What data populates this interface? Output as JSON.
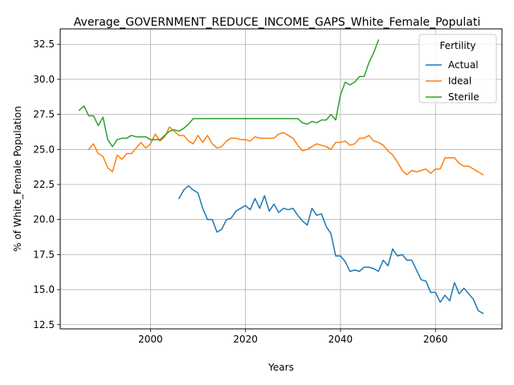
{
  "chart_data": {
    "type": "line",
    "title": "Average_GOVERNMENT_REDUCE_INCOME_GAPS_White_Female_Populati",
    "xlabel": "Years",
    "ylabel": "% of White_Female Population",
    "xlim": [
      1981,
      2074
    ],
    "ylim": [
      12.2,
      33.6
    ],
    "xticks": [
      2000,
      2020,
      2040,
      2060
    ],
    "yticks": [
      12.5,
      15.0,
      17.5,
      20.0,
      22.5,
      25.0,
      27.5,
      30.0,
      32.5
    ],
    "grid": true,
    "legend": {
      "title": "Fertility",
      "position": "top-right"
    },
    "series": [
      {
        "name": "Actual",
        "color": "#1f77b4",
        "x": [
          2006,
          2007,
          2008,
          2009,
          2010,
          2011,
          2012,
          2013,
          2014,
          2015,
          2016,
          2017,
          2018,
          2019,
          2020,
          2021,
          2022,
          2023,
          2024,
          2025,
          2026,
          2027,
          2028,
          2029,
          2030,
          2031,
          2032,
          2033,
          2034,
          2035,
          2036,
          2037,
          2038,
          2039,
          2040,
          2041,
          2042,
          2043,
          2044,
          2045,
          2046,
          2047,
          2048,
          2049,
          2050,
          2051,
          2052,
          2053,
          2054,
          2055,
          2056,
          2057,
          2058,
          2059,
          2060,
          2061,
          2062,
          2063,
          2064,
          2065,
          2066,
          2067,
          2068,
          2069,
          2070
        ],
        "values": [
          21.5,
          22.1,
          22.4,
          22.1,
          21.9,
          20.8,
          20.0,
          20.0,
          19.1,
          19.3,
          20.0,
          20.1,
          20.6,
          20.8,
          21.0,
          20.7,
          21.5,
          20.8,
          21.7,
          20.6,
          21.1,
          20.5,
          20.8,
          20.7,
          20.8,
          20.3,
          19.9,
          19.6,
          20.8,
          20.3,
          20.4,
          19.5,
          19.0,
          17.4,
          17.4,
          17.0,
          16.3,
          16.4,
          16.3,
          16.6,
          16.6,
          16.5,
          16.3,
          17.1,
          16.7,
          17.9,
          17.4,
          17.5,
          17.1,
          17.1,
          16.4,
          15.7,
          15.6,
          14.8,
          14.8,
          14.1,
          14.6,
          14.2,
          15.5,
          14.7,
          15.1,
          14.7,
          14.3,
          13.5,
          13.3
        ]
      },
      {
        "name": "Ideal",
        "color": "#ff7f0e",
        "x": [
          1987,
          1988,
          1989,
          1990,
          1991,
          1992,
          1993,
          1994,
          1995,
          1996,
          1997,
          1998,
          1999,
          2000,
          2001,
          2002,
          2003,
          2004,
          2005,
          2006,
          2007,
          2008,
          2009,
          2010,
          2011,
          2012,
          2013,
          2014,
          2015,
          2016,
          2017,
          2018,
          2019,
          2020,
          2021,
          2022,
          2023,
          2024,
          2025,
          2026,
          2027,
          2028,
          2029,
          2030,
          2031,
          2032,
          2033,
          2034,
          2035,
          2036,
          2037,
          2038,
          2039,
          2040,
          2041,
          2042,
          2043,
          2044,
          2045,
          2046,
          2047,
          2048,
          2049,
          2050,
          2051,
          2052,
          2053,
          2054,
          2055,
          2056,
          2057,
          2058,
          2059,
          2060,
          2061,
          2062,
          2063,
          2064,
          2065,
          2066,
          2067,
          2068,
          2069,
          2070
        ],
        "values": [
          25.0,
          25.4,
          24.7,
          24.5,
          23.7,
          23.4,
          24.6,
          24.3,
          24.7,
          24.7,
          25.1,
          25.5,
          25.1,
          25.4,
          26.1,
          25.6,
          25.9,
          26.6,
          26.3,
          26.0,
          26.0,
          25.6,
          25.4,
          26.0,
          25.5,
          26.0,
          25.4,
          25.1,
          25.2,
          25.6,
          25.8,
          25.8,
          25.7,
          25.7,
          25.6,
          25.9,
          25.8,
          25.8,
          25.8,
          25.8,
          26.1,
          26.2,
          26.0,
          25.8,
          25.3,
          24.9,
          25.0,
          25.2,
          25.4,
          25.3,
          25.2,
          25.0,
          25.5,
          25.5,
          25.6,
          25.3,
          25.4,
          25.8,
          25.8,
          26.0,
          25.6,
          25.5,
          25.3,
          24.9,
          24.6,
          24.1,
          23.5,
          23.2,
          23.5,
          23.4,
          23.5,
          23.6,
          23.3,
          23.6,
          23.6,
          24.4,
          24.4,
          24.4,
          24.0,
          23.8,
          23.8,
          23.6,
          23.4,
          23.2
        ]
      },
      {
        "name": "Sterile",
        "color": "#2ca02c",
        "x": [
          1985,
          1986,
          1987,
          1988,
          1989,
          1990,
          1991,
          1992,
          1993,
          1994,
          1995,
          1996,
          1997,
          1998,
          1999,
          2000,
          2001,
          2002,
          2003,
          2004,
          2005,
          2006,
          2007,
          2008,
          2009,
          2010,
          2011,
          2012,
          2013,
          2014,
          2015,
          2016,
          2017,
          2018,
          2019,
          2020,
          2021,
          2022,
          2023,
          2024,
          2025,
          2026,
          2027,
          2028,
          2029,
          2030,
          2031,
          2032,
          2033,
          2034,
          2035,
          2036,
          2037,
          2038,
          2039,
          2040,
          2041,
          2042,
          2043,
          2044,
          2045,
          2046,
          2047,
          2048
        ],
        "values": [
          27.8,
          28.1,
          27.4,
          27.4,
          26.7,
          27.3,
          25.7,
          25.2,
          25.7,
          25.8,
          25.8,
          26.0,
          25.9,
          25.9,
          25.9,
          25.7,
          25.7,
          25.7,
          26.0,
          26.3,
          26.4,
          26.3,
          26.5,
          26.8,
          27.2,
          27.2,
          27.2,
          27.2,
          27.2,
          27.2,
          27.2,
          27.2,
          27.2,
          27.2,
          27.2,
          27.2,
          27.2,
          27.2,
          27.2,
          27.2,
          27.2,
          27.2,
          27.2,
          27.2,
          27.2,
          27.2,
          27.2,
          26.9,
          26.8,
          27.0,
          26.9,
          27.1,
          27.1,
          27.5,
          27.1,
          28.9,
          29.8,
          29.6,
          29.8,
          30.2,
          30.2,
          31.2,
          31.9,
          32.8
        ]
      }
    ]
  }
}
